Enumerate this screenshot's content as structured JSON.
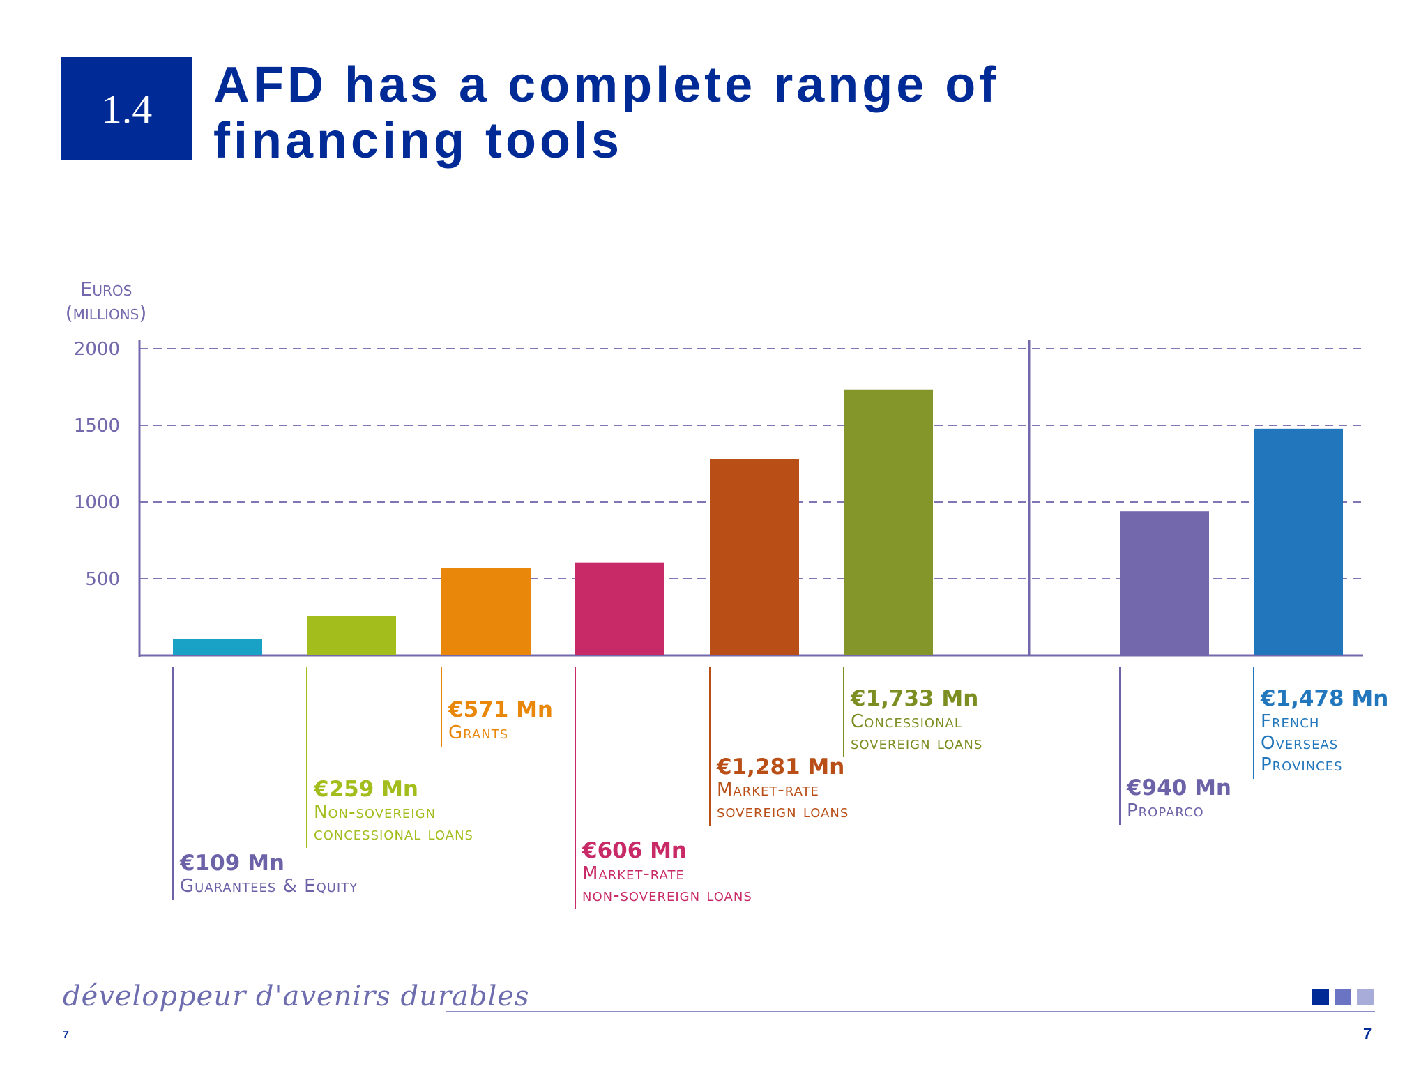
{
  "header": {
    "section": "1.4",
    "title_line1": "AFD has a complete range of",
    "title_line2": "financing tools"
  },
  "chart_data": {
    "type": "bar",
    "ylabel": [
      "Euros",
      "(millions)"
    ],
    "yticks": [
      500,
      1000,
      1500,
      2000
    ],
    "ylim": [
      0,
      2000
    ],
    "grid": true,
    "categories": [
      "Guarantees & Equity",
      "Non-sovereign concessional loans",
      "Grants",
      "Market-rate non-sovereign loans",
      "Market-rate sovereign loans",
      "Concessional sovereign loans",
      "Proparco",
      "French Overseas Provinces"
    ],
    "values": [
      109,
      259,
      571,
      606,
      1281,
      1733,
      940,
      1478
    ],
    "labels": [
      {
        "value": "€109 Mn",
        "lines": [
          "Guarantees & Equity"
        ]
      },
      {
        "value": "€259 Mn",
        "lines": [
          "Non-sovereign",
          "concessional loans"
        ]
      },
      {
        "value": "€571 Mn",
        "lines": [
          "Grants"
        ]
      },
      {
        "value": "€606 Mn",
        "lines": [
          "Market-rate",
          "non-sovereign loans"
        ]
      },
      {
        "value": "€1,281 Mn",
        "lines": [
          "Market-rate",
          "sovereign loans"
        ]
      },
      {
        "value": "€1,733 Mn",
        "lines": [
          "Concessional",
          "sovereign loans"
        ]
      },
      {
        "value": "€940 Mn",
        "lines": [
          "Proparco"
        ]
      },
      {
        "value": "€1,478 Mn",
        "lines": [
          "French",
          "Overseas",
          "Provinces"
        ]
      }
    ],
    "colors": [
      "#1aa1c6",
      "#a3bd1c",
      "#e8870a",
      "#c72a66",
      "#b94f17",
      "#84962a",
      "#7468ad",
      "#2277bc"
    ],
    "text_colors": [
      "#6c62a8",
      "#a3bd1c",
      "#e8870a",
      "#c72a66",
      "#b94f17",
      "#7c8e22",
      "#6c62a8",
      "#2277bc"
    ]
  },
  "footer": {
    "slogan": "développeur d'avenirs durables",
    "page_left": "7",
    "page_right": "7"
  },
  "colors": {
    "brand": "#002a96",
    "axis": "#7468ad",
    "squares": [
      "#002a96",
      "#6a74c2",
      "#a8acd8"
    ]
  }
}
